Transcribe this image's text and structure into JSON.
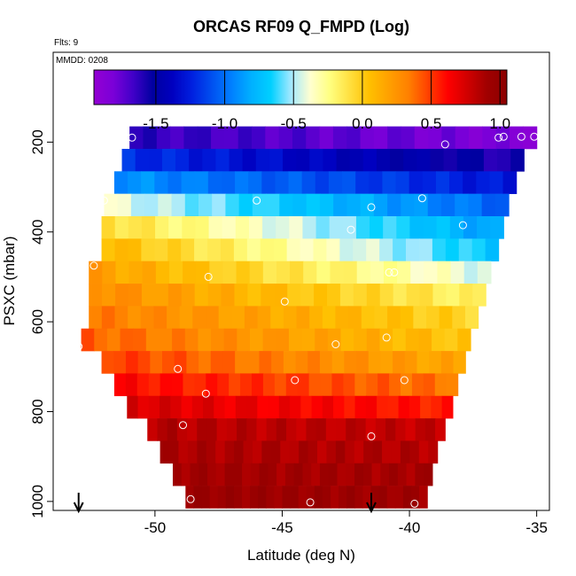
{
  "chart_data": {
    "type": "heatmap",
    "title": "ORCAS RF09 Q_FMPD (Log)",
    "annotations": {
      "flights": "Flts: 9",
      "mmdd": "MMDD: 0208"
    },
    "xlabel": "Latitude (deg N)",
    "ylabel": "PSXC (mbar)",
    "xlim": [
      -54,
      -34.5
    ],
    "ylim": [
      1020,
      0
    ],
    "x_ticks": [
      -50,
      -45,
      -40,
      -35
    ],
    "x_tick_labels": [
      "-50",
      "-45",
      "-40",
      "-35"
    ],
    "y_ticks": [
      200,
      400,
      600,
      800,
      1000
    ],
    "y_tick_labels": [
      "200",
      "400",
      "600",
      "800",
      "1000"
    ],
    "colorbar": {
      "range": [
        -1.95,
        1.05
      ],
      "ticks": [
        -1.5,
        -1.0,
        -0.5,
        0.0,
        0.5,
        1.0
      ],
      "tick_labels": [
        "-1.5",
        "-1.0",
        "-0.5",
        "0.0",
        "0.5",
        "1.0"
      ],
      "colors": [
        "#9400d3",
        "#7a00d8",
        "#4000c8",
        "#0000a0",
        "#0000c0",
        "#0020e0",
        "#0050f0",
        "#0080ff",
        "#00b0ff",
        "#00d0ff",
        "#a0e8ff",
        "#ffffd0",
        "#ffff80",
        "#ffe040",
        "#ffc000",
        "#ffa000",
        "#ff8000",
        "#ff4000",
        "#ff0000",
        "#d00000",
        "#a00000",
        "#8b0000"
      ]
    },
    "bands": [
      {
        "p": 190,
        "x0": -51.0,
        "x1": -35.0,
        "v0": -1.62,
        "v1": -1.85
      },
      {
        "p": 240,
        "x0": -51.3,
        "x1": -35.5,
        "v0": -1.18,
        "v1": -1.6
      },
      {
        "p": 290,
        "x0": -51.6,
        "x1": -35.8,
        "v0": -0.88,
        "v1": -1.3
      },
      {
        "p": 340,
        "x0": -52.0,
        "x1": -36.1,
        "v0": -0.4,
        "v1": -1.05
      },
      {
        "p": 390,
        "x0": -52.1,
        "x1": -36.3,
        "v0": -0.05,
        "v1": -0.88
      },
      {
        "p": 440,
        "x0": -52.1,
        "x1": -36.5,
        "v0": 0.1,
        "v1": -0.72
      },
      {
        "p": 490,
        "x0": -52.6,
        "x1": -36.8,
        "v0": 0.22,
        "v1": -0.45
      },
      {
        "p": 540,
        "x0": -52.6,
        "x1": -37.0,
        "v0": 0.3,
        "v1": -0.2
      },
      {
        "p": 590,
        "x0": -52.6,
        "x1": -37.3,
        "v0": 0.35,
        "v1": -0.05
      },
      {
        "p": 640,
        "x0": -52.9,
        "x1": -37.6,
        "v0": 0.42,
        "v1": 0.02
      },
      {
        "p": 690,
        "x0": -52.1,
        "x1": -37.8,
        "v0": 0.5,
        "v1": 0.15
      },
      {
        "p": 740,
        "x0": -51.6,
        "x1": -38.1,
        "v0": 0.62,
        "v1": 0.35
      },
      {
        "p": 790,
        "x0": -51.1,
        "x1": -38.3,
        "v0": 0.75,
        "v1": 0.55
      },
      {
        "p": 840,
        "x0": -50.3,
        "x1": -38.6,
        "v0": 0.85,
        "v1": 0.8
      },
      {
        "p": 890,
        "x0": -49.8,
        "x1": -38.9,
        "v0": 0.88,
        "v1": 0.85
      },
      {
        "p": 940,
        "x0": -49.3,
        "x1": -39.1,
        "v0": 0.92,
        "v1": 0.9
      },
      {
        "p": 990,
        "x0": -48.8,
        "x1": -39.3,
        "v0": 0.95,
        "v1": 0.93
      }
    ],
    "sample_points": [
      {
        "lat": -50.9,
        "p": 190
      },
      {
        "lat": -38.6,
        "p": 205
      },
      {
        "lat": -36.5,
        "p": 190
      },
      {
        "lat": -36.3,
        "p": 188
      },
      {
        "lat": -35.6,
        "p": 188
      },
      {
        "lat": -35.1,
        "p": 188
      },
      {
        "lat": -52.0,
        "p": 330
      },
      {
        "lat": -46.0,
        "p": 330
      },
      {
        "lat": -41.5,
        "p": 345
      },
      {
        "lat": -39.5,
        "p": 325
      },
      {
        "lat": -42.3,
        "p": 395
      },
      {
        "lat": -37.9,
        "p": 385
      },
      {
        "lat": -52.4,
        "p": 475
      },
      {
        "lat": -47.9,
        "p": 500
      },
      {
        "lat": -40.8,
        "p": 490
      },
      {
        "lat": -40.6,
        "p": 490
      },
      {
        "lat": -44.9,
        "p": 555
      },
      {
        "lat": -42.9,
        "p": 650
      },
      {
        "lat": -40.9,
        "p": 635
      },
      {
        "lat": -53.0,
        "p": 655
      },
      {
        "lat": -49.1,
        "p": 705
      },
      {
        "lat": -44.5,
        "p": 730
      },
      {
        "lat": -40.2,
        "p": 730
      },
      {
        "lat": -48.0,
        "p": 760
      },
      {
        "lat": -48.9,
        "p": 830
      },
      {
        "lat": -41.5,
        "p": 855
      },
      {
        "lat": -48.6,
        "p": 995
      },
      {
        "lat": -43.9,
        "p": 1002
      },
      {
        "lat": -39.8,
        "p": 1005
      }
    ],
    "arrows": [
      {
        "lat": -53.0
      },
      {
        "lat": -41.5
      }
    ],
    "grid": false,
    "legend": "none"
  }
}
